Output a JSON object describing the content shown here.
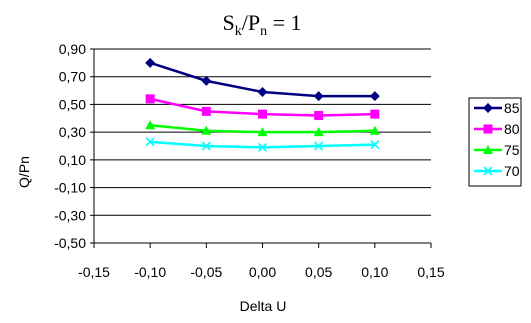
{
  "chart_data": {
    "type": "line",
    "title": {
      "base": "S",
      "sub1": "k",
      "mid": "/P",
      "sub2": "n",
      "tail": " = 1"
    },
    "xlabel": "Delta U",
    "ylabel": "Q/Pn",
    "xlim": [
      -0.15,
      0.15
    ],
    "ylim": [
      -0.5,
      0.9
    ],
    "x_ticks": [
      "-0,15",
      "-0,10",
      "-0,05",
      "0,00",
      "0,05",
      "0,10",
      "0,15"
    ],
    "y_ticks": [
      "0,90",
      "0,70",
      "0,50",
      "0,30",
      "0,10",
      "-0,10",
      "-0,30",
      "-0,50"
    ],
    "grid": "horizontal",
    "legend_position": "right",
    "x": [
      -0.1,
      -0.05,
      0.0,
      0.05,
      0.1
    ],
    "series": [
      {
        "name": "85",
        "color": "#000080",
        "marker": "diamond",
        "values": [
          0.8,
          0.67,
          0.59,
          0.56,
          0.56
        ]
      },
      {
        "name": "80",
        "color": "#ff00ff",
        "marker": "square",
        "values": [
          0.54,
          0.45,
          0.43,
          0.42,
          0.43
        ]
      },
      {
        "name": "75",
        "color": "#00ff00",
        "marker": "triangle",
        "values": [
          0.35,
          0.31,
          0.3,
          0.3,
          0.31
        ]
      },
      {
        "name": "70",
        "color": "#00ffff",
        "marker": "x",
        "values": [
          0.23,
          0.2,
          0.19,
          0.2,
          0.21
        ]
      }
    ]
  }
}
